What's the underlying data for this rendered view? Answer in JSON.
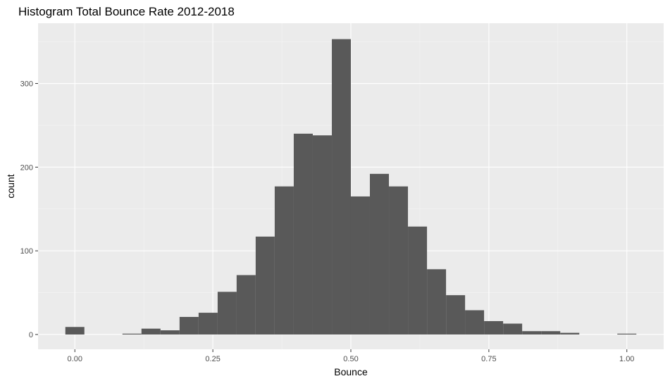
{
  "chart_data": {
    "type": "bar",
    "title": "Histogram Total Bounce Rate 2012-2018",
    "xlabel": "Bounce",
    "ylabel": "count",
    "xlim": [
      -0.0667,
      1.0667
    ],
    "ylim": [
      -17.7,
      372
    ],
    "x_ticks": [
      0.0,
      0.25,
      0.5,
      0.75,
      1.0
    ],
    "x_tick_labels": [
      "0.00",
      "0.25",
      "0.50",
      "0.75",
      "1.00"
    ],
    "y_ticks": [
      0,
      100,
      200,
      300
    ],
    "y_tick_labels": [
      "0",
      "100",
      "200",
      "300"
    ],
    "bin_width": 0.03448,
    "bin_centers": [
      0.0,
      0.0345,
      0.069,
      0.1034,
      0.1379,
      0.1724,
      0.2069,
      0.2414,
      0.2759,
      0.3103,
      0.3448,
      0.3793,
      0.4138,
      0.4483,
      0.4828,
      0.5172,
      0.5517,
      0.5862,
      0.6207,
      0.6552,
      0.6897,
      0.7241,
      0.7586,
      0.7931,
      0.8276,
      0.8621,
      0.8966,
      0.931,
      0.9655,
      1.0
    ],
    "values": [
      9,
      0,
      0,
      1,
      7,
      5,
      21,
      26,
      51,
      71,
      117,
      177,
      240,
      238,
      353,
      165,
      192,
      177,
      129,
      78,
      47,
      29,
      16,
      13,
      4,
      4,
      2,
      0,
      0,
      1
    ],
    "grid": true,
    "colors": {
      "bar": "#595959",
      "panel": "#ebebeb",
      "grid_major": "#ffffff",
      "grid_minor": "#f5f5f5"
    }
  }
}
